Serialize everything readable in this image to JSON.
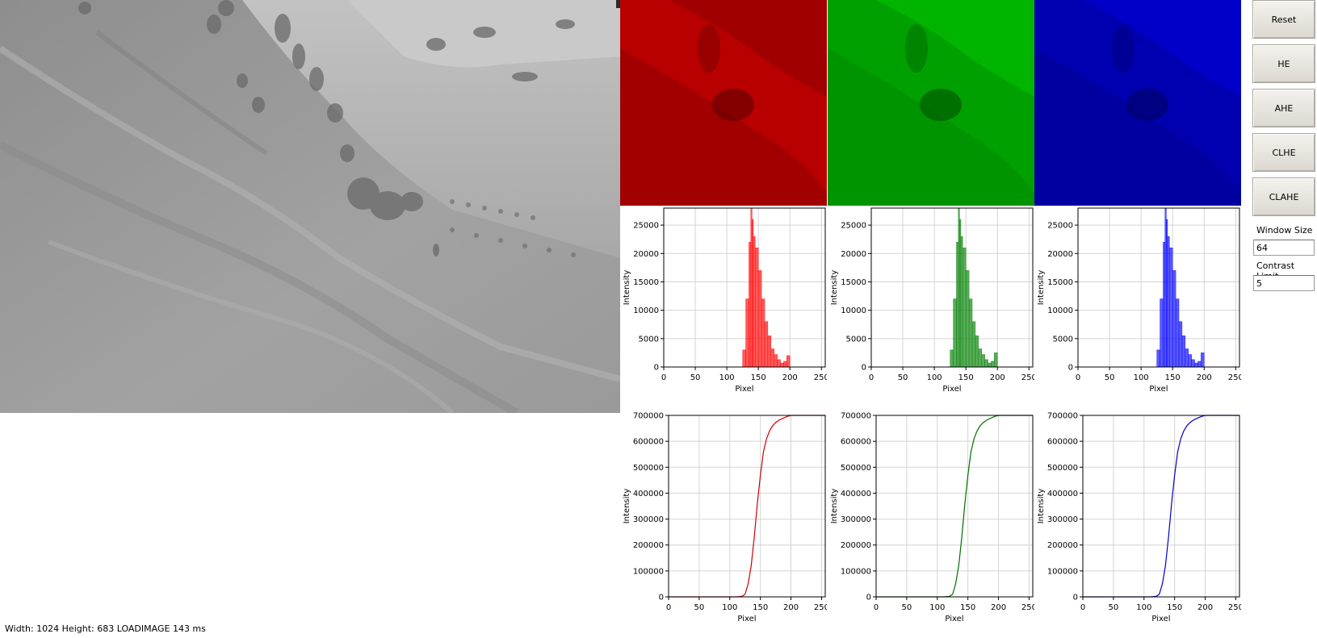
{
  "toolbar": {
    "reset_label": "Reset",
    "he_label": "HE",
    "ahe_label": "AHE",
    "clhe_label": "CLHE",
    "clahe_label": "CLAHE"
  },
  "settings": {
    "window_size_label": "Window Size",
    "window_size_value": "64",
    "contrast_limit_label": "Contrast Limit",
    "contrast_limit_value": "5"
  },
  "status": {
    "text": "Width: 1024 Height: 683 LOADIMAGE 143 ms"
  },
  "colors": {
    "red": "#ff0000",
    "green": "#008000",
    "blue": "#0000ff",
    "red_channel_bg": "#b80000",
    "green_channel_bg": "#00a800",
    "blue_channel_bg": "#0000b0"
  },
  "chart_data": [
    {
      "id": "hist-red",
      "type": "bar",
      "xlabel": "Pixel",
      "ylabel": "Intensity",
      "xlim": [
        0,
        256
      ],
      "ylim": [
        0,
        28000
      ],
      "xticks": [
        0,
        50,
        100,
        150,
        200,
        250
      ],
      "yticks": [
        0,
        5000,
        10000,
        15000,
        20000,
        25000
      ],
      "grid": true,
      "color": "#ff0000",
      "x": [
        120,
        125,
        130,
        135,
        138,
        140,
        142,
        145,
        150,
        155,
        160,
        165,
        170,
        175,
        180,
        185,
        190,
        195,
        200
      ],
      "values": [
        0,
        3000,
        12000,
        22000,
        28000,
        26000,
        23000,
        21000,
        17000,
        12000,
        8000,
        5500,
        3200,
        2200,
        1300,
        700,
        1000,
        2000,
        0
      ]
    },
    {
      "id": "hist-green",
      "type": "bar",
      "xlabel": "Pixel",
      "ylabel": "Intensity",
      "xlim": [
        0,
        256
      ],
      "ylim": [
        0,
        28000
      ],
      "xticks": [
        0,
        50,
        100,
        150,
        200,
        250
      ],
      "yticks": [
        0,
        5000,
        10000,
        15000,
        20000,
        25000
      ],
      "grid": true,
      "color": "#008000",
      "x": [
        120,
        125,
        130,
        135,
        138,
        140,
        142,
        145,
        150,
        155,
        160,
        165,
        170,
        175,
        180,
        185,
        190,
        195,
        200
      ],
      "values": [
        0,
        3000,
        12000,
        22000,
        28000,
        26000,
        23000,
        21000,
        17000,
        12000,
        8000,
        5500,
        3200,
        2200,
        1300,
        700,
        1000,
        2500,
        0
      ]
    },
    {
      "id": "hist-blue",
      "type": "bar",
      "xlabel": "Pixel",
      "ylabel": "Intensity",
      "xlim": [
        0,
        256
      ],
      "ylim": [
        0,
        28000
      ],
      "xticks": [
        0,
        50,
        100,
        150,
        200,
        250
      ],
      "yticks": [
        0,
        5000,
        10000,
        15000,
        20000,
        25000
      ],
      "grid": true,
      "color": "#0000ff",
      "x": [
        120,
        125,
        130,
        135,
        138,
        140,
        142,
        145,
        150,
        155,
        160,
        165,
        170,
        175,
        180,
        185,
        190,
        195,
        200
      ],
      "values": [
        0,
        3000,
        12000,
        22000,
        28000,
        26000,
        23000,
        21000,
        17000,
        12000,
        8000,
        5500,
        3200,
        2200,
        1300,
        700,
        1000,
        2500,
        0
      ]
    },
    {
      "id": "cdf-red",
      "type": "line",
      "xlabel": "Pixel",
      "ylabel": "Intensity",
      "xlim": [
        0,
        256
      ],
      "ylim": [
        0,
        700000
      ],
      "xticks": [
        0,
        50,
        100,
        150,
        200,
        250
      ],
      "yticks": [
        0,
        100000,
        200000,
        300000,
        400000,
        500000,
        600000,
        700000
      ],
      "grid": true,
      "color": "#cc0000",
      "x": [
        0,
        110,
        120,
        125,
        130,
        135,
        140,
        145,
        150,
        155,
        160,
        165,
        170,
        175,
        180,
        185,
        190,
        195,
        200,
        256
      ],
      "values": [
        0,
        0,
        2000,
        10000,
        50000,
        120000,
        230000,
        360000,
        470000,
        560000,
        610000,
        640000,
        660000,
        672000,
        681000,
        687000,
        692000,
        697000,
        700000,
        700000
      ]
    },
    {
      "id": "cdf-green",
      "type": "line",
      "xlabel": "Pixel",
      "ylabel": "Intensity",
      "xlim": [
        0,
        256
      ],
      "ylim": [
        0,
        700000
      ],
      "xticks": [
        0,
        50,
        100,
        150,
        200,
        250
      ],
      "yticks": [
        0,
        100000,
        200000,
        300000,
        400000,
        500000,
        600000,
        700000
      ],
      "grid": true,
      "color": "#007000",
      "x": [
        0,
        110,
        120,
        125,
        130,
        135,
        140,
        145,
        150,
        155,
        160,
        165,
        170,
        175,
        180,
        185,
        190,
        195,
        200,
        256
      ],
      "values": [
        0,
        0,
        2000,
        10000,
        50000,
        120000,
        230000,
        360000,
        470000,
        560000,
        610000,
        640000,
        660000,
        672000,
        681000,
        687000,
        692000,
        697000,
        700000,
        700000
      ]
    },
    {
      "id": "cdf-blue",
      "type": "line",
      "xlabel": "Pixel",
      "ylabel": "Intensity",
      "xlim": [
        0,
        256
      ],
      "ylim": [
        0,
        700000
      ],
      "xticks": [
        0,
        50,
        100,
        150,
        200,
        250
      ],
      "yticks": [
        0,
        100000,
        200000,
        300000,
        400000,
        500000,
        600000,
        700000
      ],
      "grid": true,
      "color": "#0000cc",
      "x": [
        0,
        110,
        120,
        125,
        130,
        135,
        140,
        145,
        150,
        155,
        160,
        165,
        170,
        175,
        180,
        185,
        190,
        195,
        200,
        256
      ],
      "values": [
        0,
        0,
        2000,
        10000,
        50000,
        120000,
        230000,
        360000,
        470000,
        560000,
        610000,
        640000,
        660000,
        672000,
        681000,
        687000,
        692000,
        697000,
        700000,
        700000
      ]
    }
  ]
}
